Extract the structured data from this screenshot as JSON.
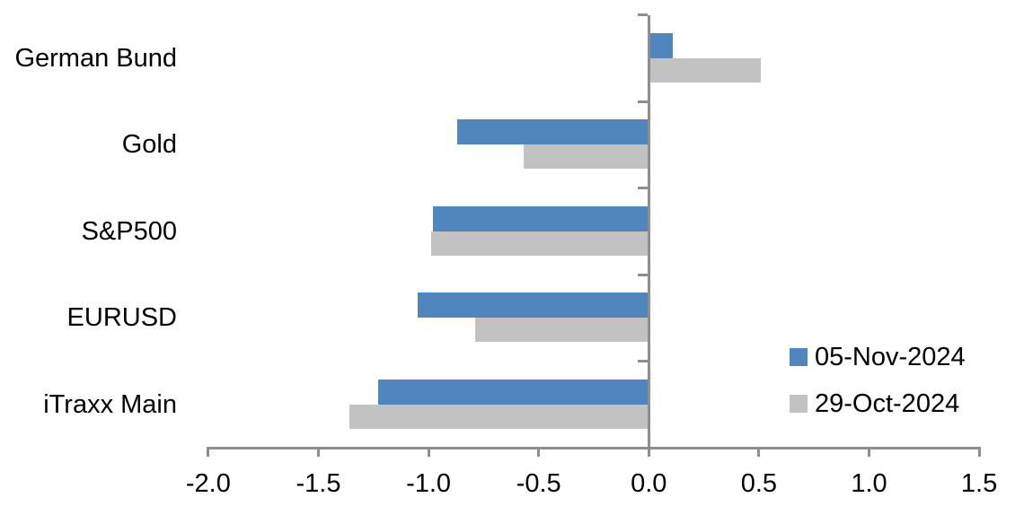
{
  "chart_data": {
    "type": "bar",
    "orientation": "horizontal",
    "title": "",
    "xlabel": "",
    "ylabel": "",
    "grid": false,
    "legend_position": "inside-right",
    "categories": [
      "German Bund",
      "Gold",
      "S&P500",
      "EURUSD",
      "iTraxx Main"
    ],
    "series": [
      {
        "name": "05-Nov-2024",
        "color": "#4E86BD",
        "values": [
          0.11,
          -0.87,
          -0.98,
          -1.05,
          -1.23
        ]
      },
      {
        "name": "29-Oct-2024",
        "color": "#C2C2C2",
        "values": [
          0.51,
          -0.57,
          -0.99,
          -0.79,
          -1.36
        ]
      }
    ],
    "xlim": [
      -2.0,
      1.5
    ],
    "x_ticks": [
      -2.0,
      -1.5,
      -1.0,
      -0.5,
      0.0,
      0.5,
      1.0,
      1.5
    ],
    "x_tick_labels": [
      "-2.0",
      "-1.5",
      "-1.0",
      "-0.5",
      "0.0",
      "0.5",
      "1.0",
      "1.5"
    ]
  },
  "legend": {
    "items": [
      {
        "label": "05-Nov-2024",
        "color": "#4E86BD"
      },
      {
        "label": "29-Oct-2024",
        "color": "#C2C2C2"
      }
    ]
  },
  "colors": {
    "bar_blue": "#4E86BD",
    "bar_gray": "#C2C2C2",
    "axis": "#8E8E8E",
    "text": "#000000",
    "background": "#FFFFFF"
  }
}
